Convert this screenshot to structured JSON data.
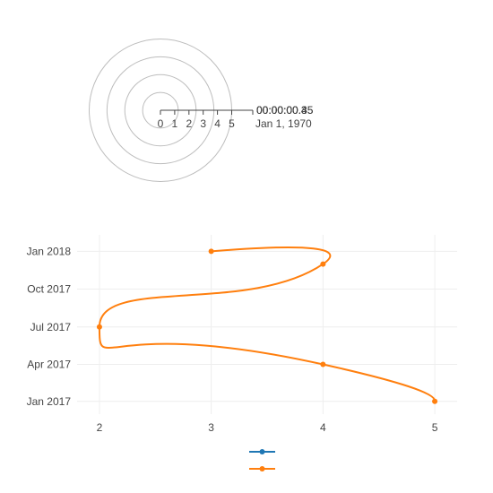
{
  "chart_data": [
    {
      "type": "polar",
      "radial_axis": {
        "range": [
          0,
          5
        ],
        "ticks": [
          "0",
          "1",
          "2",
          "3",
          "4",
          "5"
        ],
        "end_label": "Jan 1, 1970",
        "overlapping_angular_labels": [
          "00:00:00.3",
          "00:00:00.35",
          "00:00:00.4",
          "00:00:00.45"
        ]
      },
      "circles": 4,
      "series": []
    },
    {
      "type": "line",
      "xaxis": {
        "range": [
          1.8,
          5.2
        ],
        "ticks": [
          2,
          3,
          4,
          5
        ]
      },
      "yaxis": {
        "type": "date",
        "range": [
          "2016-12-01",
          "2018-02-10"
        ],
        "ticks": [
          {
            "value": "2017-01-01",
            "label": "Jan 2017"
          },
          {
            "value": "2017-04-01",
            "label": "Apr 2017"
          },
          {
            "value": "2017-07-01",
            "label": "Jul 2017"
          },
          {
            "value": "2017-10-01",
            "label": "Oct 2017"
          },
          {
            "value": "2018-01-01",
            "label": "Jan 2018"
          }
        ]
      },
      "grid": true,
      "series": [
        {
          "color": "#1f77b4",
          "line_shape": "spline",
          "x": [],
          "y": []
        },
        {
          "color": "#ff7f0e",
          "line_shape": "spline",
          "x": [
            5,
            4,
            2,
            4,
            3
          ],
          "y": [
            "2017-01-01",
            "2017-04-01",
            "2017-07-01",
            "2017-12-01",
            "2018-01-01"
          ]
        }
      ],
      "legend": {
        "position": "bottom-center",
        "entries": [
          {
            "color": "#1f77b4"
          },
          {
            "color": "#ff7f0e"
          }
        ]
      }
    }
  ]
}
